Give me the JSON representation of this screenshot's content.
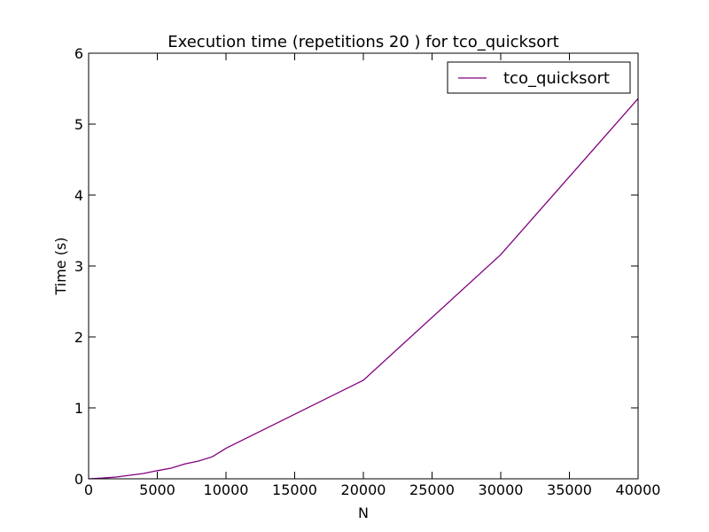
{
  "chart_data": {
    "type": "line",
    "title": "Execution time (repetitions 20 ) for tco_quicksort",
    "xlabel": "N",
    "ylabel": "Time (s)",
    "xlim": [
      0,
      40000
    ],
    "ylim": [
      0,
      6
    ],
    "xticks": [
      0,
      5000,
      10000,
      15000,
      20000,
      25000,
      30000,
      35000,
      40000
    ],
    "xtick_labels": [
      "0",
      "5000",
      "10000",
      "15000",
      "20000",
      "25000",
      "30000",
      "35000",
      "40000"
    ],
    "yticks": [
      0,
      1,
      2,
      3,
      4,
      5,
      6
    ],
    "ytick_labels": [
      "0",
      "1",
      "2",
      "3",
      "4",
      "5",
      "6"
    ],
    "grid": false,
    "legend_position": "top-right",
    "series": [
      {
        "name": "tco_quicksort",
        "color": "#800080",
        "x": [
          0,
          1000,
          2000,
          3000,
          4000,
          5000,
          6000,
          7000,
          8000,
          9000,
          10000,
          20000,
          30000,
          40000
        ],
        "y": [
          0.0,
          0.01,
          0.025,
          0.05,
          0.075,
          0.115,
          0.15,
          0.21,
          0.25,
          0.31,
          0.43,
          1.39,
          3.16,
          5.36
        ]
      }
    ]
  }
}
